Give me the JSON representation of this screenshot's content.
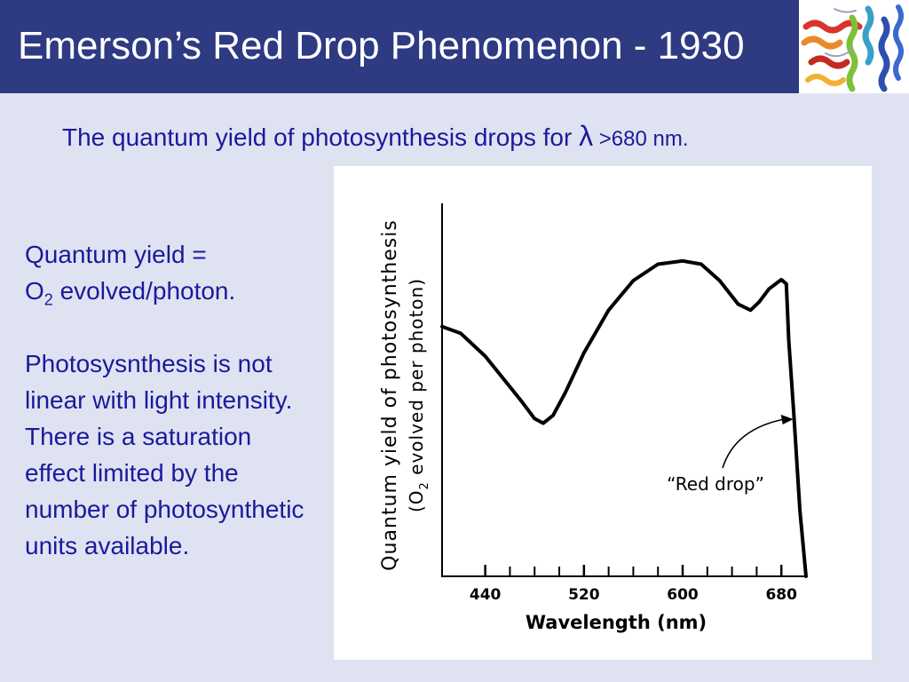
{
  "slide": {
    "title": "Emerson’s Red Drop Phenomenon - 1930",
    "subtitle_pre": "The quantum yield of photosynthesis drops for ",
    "subtitle_lambda": "λ",
    "subtitle_post": " >680 nm.",
    "definition_line1": "Quantum yield  =",
    "definition_o": "O",
    "definition_sub": "2",
    "definition_rest": " evolved/photon.",
    "body_text": "Photosysnthesis is not linear with light intensity.  There is a saturation effect limited by the number of photosynthetic units available.",
    "colors": {
      "title_bar": "#2e3a82",
      "background": "#dfe3f1",
      "body_text": "#1a1a9c"
    },
    "image_icon": "protein-structure-image"
  },
  "chart_data": {
    "type": "line",
    "ylabel_line1": "Quantum yield of photosynthesis",
    "ylabel_line2_pre": "(O",
    "ylabel_line2_sub": "2",
    "ylabel_line2_post": " evolved per photon)",
    "xlabel": "Wavelength (nm)",
    "x_tick_labels": [
      "440",
      "520",
      "600",
      "680"
    ],
    "x_ticks_minor": [
      460,
      480,
      500,
      540,
      560,
      580,
      620,
      640,
      660
    ],
    "xlim": [
      405,
      700
    ],
    "ylim": [
      0,
      1
    ],
    "y_axis_ticks": "none",
    "annotation": "“Red drop”",
    "annotation_arrow_target_x": 689,
    "series": [
      {
        "x": [
          405,
          420,
          440,
          455,
          470,
          480,
          487,
          495,
          505,
          520,
          540,
          560,
          580,
          600,
          615,
          630,
          645,
          655,
          662,
          670,
          680,
          684,
          686,
          690,
          695,
          700
        ],
        "y": [
          0.76,
          0.74,
          0.67,
          0.6,
          0.53,
          0.48,
          0.466,
          0.49,
          0.56,
          0.68,
          0.81,
          0.9,
          0.95,
          0.96,
          0.95,
          0.9,
          0.828,
          0.81,
          0.835,
          0.875,
          0.903,
          0.89,
          0.72,
          0.5,
          0.2,
          0.0
        ]
      }
    ]
  }
}
